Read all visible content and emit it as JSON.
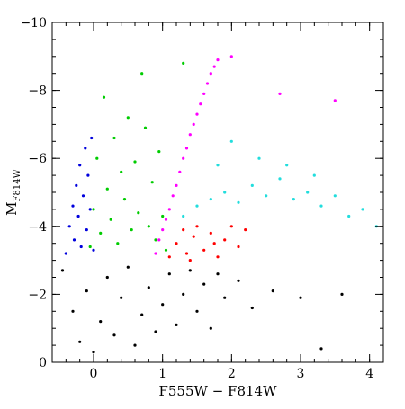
{
  "chart_data": {
    "type": "scatter",
    "title": "",
    "xlabel": "F555W − F814W",
    "ylabel": "M",
    "ylabel_subscript": "F814W",
    "xlim": [
      -0.6,
      4.2
    ],
    "ylim": [
      0,
      -10
    ],
    "y_axis_inverted": true,
    "grid": false,
    "legend": "none",
    "x_ticks": [
      {
        "value": 0,
        "label": "0"
      },
      {
        "value": 1,
        "label": "1"
      },
      {
        "value": 2,
        "label": "2"
      },
      {
        "value": 3,
        "label": "3"
      },
      {
        "value": 4,
        "label": "4"
      }
    ],
    "y_ticks": [
      {
        "value": 0,
        "label": "0"
      },
      {
        "value": -2,
        "label": "−2"
      },
      {
        "value": -4,
        "label": "−4"
      },
      {
        "value": -6,
        "label": "−6"
      },
      {
        "value": -8,
        "label": "−8"
      },
      {
        "value": -10,
        "label": "−10"
      }
    ],
    "x_minor_step": 0.2,
    "y_minor_step": 0.5,
    "series": [
      {
        "color": "#000000",
        "points": [
          [
            -0.45,
            -2.7
          ],
          [
            -0.3,
            -1.5
          ],
          [
            -0.2,
            -0.6
          ],
          [
            -0.1,
            -2.1
          ],
          [
            0.0,
            -0.3
          ],
          [
            0.1,
            -1.2
          ],
          [
            0.2,
            -2.5
          ],
          [
            0.3,
            -0.8
          ],
          [
            0.4,
            -1.9
          ],
          [
            0.5,
            -2.8
          ],
          [
            0.6,
            -0.5
          ],
          [
            0.7,
            -1.4
          ],
          [
            0.8,
            -2.2
          ],
          [
            0.9,
            -0.9
          ],
          [
            1.0,
            -1.7
          ],
          [
            1.1,
            -2.6
          ],
          [
            1.2,
            -1.1
          ],
          [
            1.3,
            -2.0
          ],
          [
            1.4,
            -2.7
          ],
          [
            1.5,
            -1.5
          ],
          [
            1.6,
            -2.3
          ],
          [
            1.7,
            -1.0
          ],
          [
            1.8,
            -2.6
          ],
          [
            1.9,
            -1.9
          ],
          [
            2.1,
            -2.4
          ],
          [
            2.3,
            -1.6
          ],
          [
            2.6,
            -2.1
          ],
          [
            3.0,
            -1.9
          ],
          [
            3.3,
            -0.4
          ],
          [
            3.6,
            -2.0
          ]
        ]
      },
      {
        "color": "#0000dd",
        "points": [
          [
            -0.4,
            -3.2
          ],
          [
            -0.35,
            -4.0
          ],
          [
            -0.3,
            -4.6
          ],
          [
            -0.28,
            -3.6
          ],
          [
            -0.25,
            -5.2
          ],
          [
            -0.22,
            -4.3
          ],
          [
            -0.2,
            -5.8
          ],
          [
            -0.18,
            -3.4
          ],
          [
            -0.15,
            -4.9
          ],
          [
            -0.12,
            -6.3
          ],
          [
            -0.1,
            -3.9
          ],
          [
            -0.08,
            -5.5
          ],
          [
            -0.05,
            -4.5
          ],
          [
            -0.03,
            -6.6
          ],
          [
            0.0,
            -3.3
          ]
        ]
      },
      {
        "color": "#00cc00",
        "points": [
          [
            -0.05,
            -3.4
          ],
          [
            0.0,
            -4.5
          ],
          [
            0.05,
            -6.0
          ],
          [
            0.1,
            -3.8
          ],
          [
            0.15,
            -7.8
          ],
          [
            0.2,
            -5.1
          ],
          [
            0.25,
            -4.2
          ],
          [
            0.3,
            -6.6
          ],
          [
            0.35,
            -3.5
          ],
          [
            0.4,
            -5.6
          ],
          [
            0.45,
            -4.8
          ],
          [
            0.5,
            -7.2
          ],
          [
            0.55,
            -3.9
          ],
          [
            0.6,
            -5.9
          ],
          [
            0.65,
            -4.4
          ],
          [
            0.7,
            -8.5
          ],
          [
            0.75,
            -6.9
          ],
          [
            0.8,
            -4.0
          ],
          [
            0.85,
            -5.3
          ],
          [
            0.9,
            -3.6
          ],
          [
            0.95,
            -6.2
          ],
          [
            1.0,
            -4.3
          ],
          [
            1.05,
            -3.3
          ],
          [
            1.3,
            -8.8
          ]
        ]
      },
      {
        "color": "#ff00ff",
        "points": [
          [
            0.9,
            -3.2
          ],
          [
            0.95,
            -3.6
          ],
          [
            1.0,
            -3.9
          ],
          [
            1.05,
            -4.2
          ],
          [
            1.1,
            -4.5
          ],
          [
            1.15,
            -4.9
          ],
          [
            1.2,
            -5.2
          ],
          [
            1.25,
            -5.6
          ],
          [
            1.3,
            -6.0
          ],
          [
            1.35,
            -6.3
          ],
          [
            1.4,
            -6.7
          ],
          [
            1.45,
            -7.0
          ],
          [
            1.5,
            -7.3
          ],
          [
            1.55,
            -7.6
          ],
          [
            1.6,
            -7.9
          ],
          [
            1.65,
            -8.2
          ],
          [
            1.7,
            -8.5
          ],
          [
            1.75,
            -8.7
          ],
          [
            1.8,
            -8.9
          ],
          [
            2.0,
            -9.0
          ],
          [
            2.7,
            -7.9
          ],
          [
            3.5,
            -7.7
          ]
        ]
      },
      {
        "color": "#ff0000",
        "points": [
          [
            1.1,
            -3.1
          ],
          [
            1.2,
            -3.5
          ],
          [
            1.3,
            -3.9
          ],
          [
            1.35,
            -3.2
          ],
          [
            1.45,
            -3.7
          ],
          [
            1.5,
            -4.0
          ],
          [
            1.6,
            -3.3
          ],
          [
            1.7,
            -3.8
          ],
          [
            1.8,
            -3.1
          ],
          [
            1.9,
            -3.6
          ],
          [
            2.0,
            -4.0
          ],
          [
            2.1,
            -3.4
          ],
          [
            2.2,
            -3.9
          ],
          [
            1.4,
            -3.0
          ],
          [
            1.75,
            -3.5
          ]
        ]
      },
      {
        "color": "#22dddd",
        "points": [
          [
            1.3,
            -4.3
          ],
          [
            1.5,
            -4.6
          ],
          [
            1.7,
            -4.8
          ],
          [
            1.9,
            -5.0
          ],
          [
            2.1,
            -4.7
          ],
          [
            2.3,
            -5.2
          ],
          [
            2.5,
            -4.9
          ],
          [
            2.7,
            -5.4
          ],
          [
            2.9,
            -4.8
          ],
          [
            3.1,
            -5.0
          ],
          [
            3.3,
            -4.6
          ],
          [
            3.5,
            -4.9
          ],
          [
            3.7,
            -4.3
          ],
          [
            3.9,
            -4.5
          ],
          [
            4.1,
            -4.0
          ],
          [
            2.0,
            -6.5
          ],
          [
            2.4,
            -6.0
          ],
          [
            2.8,
            -5.8
          ],
          [
            3.2,
            -5.5
          ],
          [
            1.8,
            -5.8
          ]
        ]
      }
    ]
  }
}
